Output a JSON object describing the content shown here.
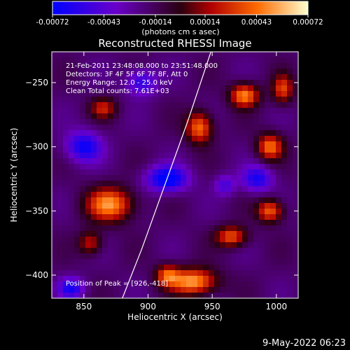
{
  "chart_data": {
    "type": "heatmap",
    "title": "Reconstructed RHESSI Image",
    "xlabel": "Heliocentric X (arcsec)",
    "ylabel": "Heliocentric Y (arcsec)",
    "xlim": [
      825,
      1017
    ],
    "ylim": [
      -418,
      -226
    ],
    "x_ticks": [
      850,
      900,
      950,
      1000
    ],
    "y_ticks": [
      -250,
      -300,
      -350,
      -400
    ],
    "colorbar": {
      "ticks": [
        "-0.00072",
        "-0.00043",
        "-0.00014",
        "0.00014",
        "0.00043",
        "0.00072"
      ],
      "range": [
        -0.00072,
        0.00072
      ],
      "units": "(photons cm<sup>-2</sup> s<sup>-1</sup> asec<sup>-2</sup>)",
      "colors": [
        "#0000ff",
        "#6a00c8",
        "#2a0010",
        "#b00000",
        "#ff6a00",
        "#ffffd0"
      ]
    },
    "info_lines": [
      "21-Feb-2011 23:48:08.000 to 23:51:48.000",
      "Detectors: 3F 4F 5F 6F 7F 8F, Att 0",
      "Energy Range: 12.0 - 25.0 keV",
      "Clean     Total counts: 7.61E+03"
    ],
    "peak_text": "Position of Peak = [926,-418]",
    "limb_points": [
      [
        880,
        -418
      ],
      [
        895,
        -380
      ],
      [
        913,
        -330
      ],
      [
        931,
        -280
      ],
      [
        949,
        -226
      ]
    ],
    "hot_spots": [
      [
        865,
        -270,
        10,
        8,
        0.0004
      ],
      [
        940,
        -285,
        10,
        12,
        0.00062
      ],
      [
        975,
        -260,
        11,
        9,
        0.00066
      ],
      [
        1005,
        -255,
        8,
        11,
        0.0005
      ],
      [
        995,
        -300,
        10,
        10,
        0.0006
      ],
      [
        870,
        -345,
        18,
        13,
        0.00068
      ],
      [
        855,
        -375,
        9,
        9,
        0.0004
      ],
      [
        995,
        -350,
        10,
        9,
        0.00058
      ],
      [
        965,
        -370,
        12,
        8,
        0.00055
      ],
      [
        935,
        -405,
        18,
        10,
        0.00072
      ],
      [
        915,
        -400,
        9,
        8,
        0.0005
      ]
    ],
    "cold_spots": [
      [
        850,
        -300,
        14,
        12,
        -0.0005
      ],
      [
        915,
        -325,
        16,
        10,
        -0.0006
      ],
      [
        985,
        -325,
        12,
        10,
        -0.00045
      ],
      [
        895,
        -250,
        12,
        10,
        -0.0004
      ],
      [
        840,
        -410,
        10,
        8,
        -0.00045
      ],
      [
        960,
        -330,
        8,
        8,
        -0.0003
      ]
    ]
  },
  "footer": {
    "date": "9-May-2022 06:23"
  }
}
